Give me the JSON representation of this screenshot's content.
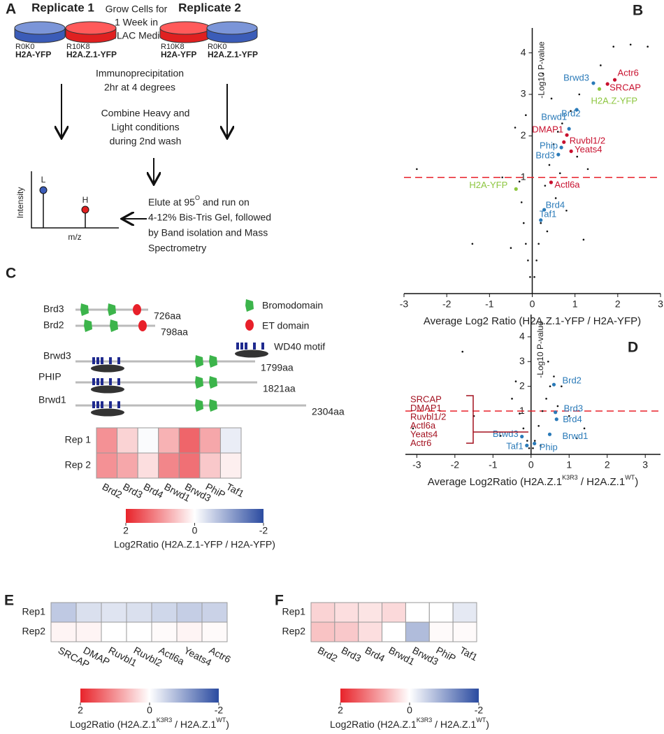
{
  "workflow": {
    "panel": "A",
    "replicate1": "Replicate 1",
    "replicate2": "Replicate 2",
    "grow": [
      "Grow Cells for",
      "1 Week in",
      "SILAC Media"
    ],
    "dishes": [
      {
        "label": "R0K0",
        "name": "H2A-YFP"
      },
      {
        "label": "R10K8",
        "name": "H2A.Z.1-YFP"
      },
      {
        "label": "R10K8",
        "name": "H2A-YFP"
      },
      {
        "label": "R0K0",
        "name": "H2A.Z.1-YFP"
      }
    ],
    "ip": [
      "Immunoprecipitation",
      "2hr at 4 degrees"
    ],
    "combine": [
      "Combine Heavy and",
      "Light conditions",
      "during 2nd wash"
    ],
    "elute_first": [
      "Elute at 95",
      "O",
      " and run on"
    ],
    "elute": [
      "4-12% Bis-Tris Gel, followed",
      "by Band isolation and Mass",
      "Spectrometry"
    ],
    "spectrum": {
      "light": "L",
      "heavy": "H",
      "y_label": "Intensity",
      "x_label": "m/z"
    }
  },
  "domains": {
    "panel": "C",
    "proteins": [
      {
        "name": "Brd3",
        "size": "726aa"
      },
      {
        "name": "Brd2",
        "size": "798aa"
      },
      {
        "name": "Brwd3",
        "size": "1799aa"
      },
      {
        "name": "PHIP",
        "size": "1821aa"
      },
      {
        "name": "Brwd1",
        "size": "2304aa"
      }
    ],
    "legend": [
      "Bromodomain",
      "ET domain",
      "WD40 motif"
    ]
  },
  "chart_data": [
    {
      "type": "scatter",
      "panel": "B",
      "x_label": "Average Log2 Ratio (H2A.Z.1-YFP / H2A-YFP)",
      "y_label": "-Log10 P-value",
      "xlim": [
        -3,
        3
      ],
      "xticks": [
        -3,
        -2,
        -1,
        0,
        1,
        2,
        3
      ],
      "ylim": [
        -1.8,
        4.6
      ],
      "yticks": [
        1,
        2,
        3,
        4
      ],
      "threshold": 1,
      "threshold_color": "#e8202a",
      "background": {
        "color": "#111111",
        "x": [
          -0.3,
          -0.25,
          -0.2,
          -0.15,
          -0.1,
          -0.05,
          0.05,
          0.1,
          0.15,
          0.2,
          0.3,
          0.4,
          0.5,
          0.6,
          0.7,
          0.9,
          1.1,
          1.3,
          1.6,
          1.9,
          2.3,
          2.7,
          -0.5,
          -0.7,
          -1.4,
          -2.7,
          0.35,
          0.55,
          0.8,
          1.05,
          -0.4,
          -0.15,
          0.25,
          0.45,
          1.2,
          0.65
        ],
        "y": [
          0.9,
          0.4,
          -0.1,
          -0.6,
          -1.0,
          -1.4,
          -1.4,
          -1.0,
          -0.6,
          -0.1,
          0.8,
          1.3,
          1.8,
          2.1,
          2.3,
          2.6,
          3.0,
          1.2,
          3.7,
          4.15,
          4.2,
          4.15,
          -0.7,
          1.0,
          -0.6,
          1.2,
          -0.3,
          0.5,
          0.2,
          1.5,
          2.2,
          2.5,
          3.5,
          2.9,
          -0.5,
          1.1
        ]
      },
      "points": [
        {
          "label": "Actr6",
          "x": 1.93,
          "y": 3.35,
          "color": "#c8102e"
        },
        {
          "label": "SRCAP",
          "x": 1.76,
          "y": 3.25,
          "color": "#c8102e"
        },
        {
          "label": "Brwd3",
          "x": 1.43,
          "y": 3.27,
          "color": "#2a7ab8"
        },
        {
          "label": "H2A.Z-YFP",
          "x": 1.57,
          "y": 3.13,
          "color": "#8dc63f"
        },
        {
          "label": "Brd2",
          "x": 1.04,
          "y": 2.63,
          "color": "#2a7ab8"
        },
        {
          "label": "Brwd1",
          "x": 0.86,
          "y": 2.17,
          "color": "#2a7ab8"
        },
        {
          "label": "DMAP1",
          "x": 0.81,
          "y": 2.02,
          "color": "#c8102e"
        },
        {
          "label": "Ruvbl1/2",
          "x": 0.74,
          "y": 1.85,
          "color": "#c8102e"
        },
        {
          "label": "Phip",
          "x": 0.68,
          "y": 1.72,
          "color": "#2a7ab8"
        },
        {
          "label": "Yeats4",
          "x": 0.91,
          "y": 1.63,
          "color": "#c8102e"
        },
        {
          "label": "Brd3",
          "x": 0.61,
          "y": 1.55,
          "color": "#2a7ab8"
        },
        {
          "label": "Actl6a",
          "x": 0.44,
          "y": 0.88,
          "color": "#c8102e"
        },
        {
          "label": "H2A-YFP",
          "x": -0.38,
          "y": 0.72,
          "color": "#8dc63f"
        },
        {
          "label": "Brd4",
          "x": 0.28,
          "y": 0.22,
          "color": "#2a7ab8"
        },
        {
          "label": "Taf1",
          "x": 0.2,
          "y": -0.03,
          "color": "#2a7ab8"
        }
      ]
    },
    {
      "type": "scatter",
      "panel": "D",
      "x_label": [
        "Average Log2Ratio (H2A.Z.1",
        "K3R3",
        " / H2A.Z.1",
        "WT",
        ")"
      ],
      "y_label": "-Log10 P-value",
      "xlim": [
        -3.3,
        3.4
      ],
      "xticks": [
        -3,
        -2,
        -1,
        0,
        1,
        2,
        3
      ],
      "ylim": [
        -0.75,
        4.9
      ],
      "yticks": [
        1,
        2,
        3,
        4
      ],
      "threshold": 1,
      "threshold_color": "#e8202a",
      "background": {
        "color": "#111111",
        "x": [
          -0.3,
          -0.2,
          -0.1,
          -0.05,
          0.05,
          0.1,
          0.2,
          0.3,
          0.4,
          0.5,
          0.6,
          0.8,
          1.0,
          1.4,
          -0.5,
          -0.8,
          -1.5,
          -3.1,
          -1.8,
          0.45,
          0.7,
          -0.4,
          0.25,
          1.2
        ],
        "y": [
          0.9,
          0.3,
          -0.2,
          -0.5,
          -0.5,
          -0.2,
          0.4,
          1.0,
          1.5,
          2.0,
          2.4,
          2.0,
          0.8,
          0.3,
          1.5,
          0.0,
          0.8,
          0.3,
          3.4,
          3.0,
          1.2,
          2.2,
          -0.4,
          -0.1
        ]
      },
      "points": [
        {
          "label": "Brd2",
          "x": 0.6,
          "y": 2.07,
          "color": "#2a7ab8"
        },
        {
          "label": "Brd3",
          "x": 0.64,
          "y": 0.95,
          "color": "#2a7ab8"
        },
        {
          "label": "Brd4",
          "x": 0.67,
          "y": 0.67,
          "color": "#2a7ab8"
        },
        {
          "label": "Brwd1",
          "x": 0.49,
          "y": 0.06,
          "color": "#2a7ab8"
        },
        {
          "label": "Brwd3",
          "x": -0.24,
          "y": -0.03,
          "color": "#2a7ab8"
        },
        {
          "label": "Taf1",
          "x": -0.11,
          "y": -0.39,
          "color": "#2a7ab8"
        },
        {
          "label": "Phip",
          "x": 0.09,
          "y": -0.31,
          "color": "#2a7ab8"
        }
      ],
      "group_labels": [
        "SRCAP",
        "DMAP1",
        "Ruvbl1/2",
        "Actl6a",
        "Yeats4",
        "Actr6"
      ],
      "group_color": "#a3101f"
    },
    {
      "type": "heatmap",
      "rows": [
        "Rep 1",
        "Rep 2"
      ],
      "columns": [
        "Brd2",
        "Brd3",
        "Brd4",
        "Brwd1",
        "Brwd3",
        "PhiP",
        "Taf1"
      ],
      "values": [
        [
          1.0,
          0.4,
          -0.05,
          0.7,
          1.4,
          0.8,
          -0.2
        ],
        [
          1.0,
          0.8,
          0.3,
          1.1,
          1.3,
          0.5,
          0.15
        ]
      ],
      "colorbar": {
        "lim": [
          2,
          -2
        ],
        "ticks": [
          2,
          0,
          -2
        ],
        "colors": [
          "#e8232a",
          "#ffffff",
          "#2b4ba0"
        ],
        "label": "Log2Ratio (H2A.Z.1-YFP / H2A-YFP)"
      }
    },
    {
      "type": "heatmap",
      "panel": "E",
      "rows": [
        "Rep1",
        "Rep2"
      ],
      "columns": [
        "SRCAP",
        "DMAP",
        "Ruvbl1",
        "Ruvbl2",
        "Actl6a",
        "Yeats4",
        "Actr6"
      ],
      "values": [
        [
          -0.6,
          -0.35,
          -0.3,
          -0.35,
          -0.45,
          -0.55,
          -0.5
        ],
        [
          0.1,
          0.1,
          0,
          0,
          0.05,
          0.1,
          0.05
        ]
      ],
      "colorbar": {
        "lim": [
          2,
          -2
        ],
        "ticks": [
          2,
          0,
          -2
        ],
        "colors": [
          "#e8232a",
          "#ffffff",
          "#2b4ba0"
        ],
        "label": [
          "Log2Ratio (H2A.Z.1",
          "K3R3",
          " / H2A.Z.1",
          "WT",
          ")"
        ]
      }
    },
    {
      "type": "heatmap",
      "panel": "F",
      "rows": [
        "Rep1",
        "Rep2"
      ],
      "columns": [
        "Brd2",
        "Brd3",
        "Brd4",
        "Brwd1",
        "Brwd3",
        "PhiP",
        "Taf1"
      ],
      "values": [
        [
          0.4,
          0.3,
          0.25,
          0.35,
          0,
          0,
          -0.25
        ],
        [
          0.55,
          0.5,
          0.3,
          0,
          -0.75,
          0.05,
          0.05
        ]
      ],
      "colorbar": {
        "lim": [
          2,
          -2
        ],
        "ticks": [
          2,
          0,
          -2
        ],
        "colors": [
          "#e8232a",
          "#ffffff",
          "#2b4ba0"
        ],
        "label": [
          "Log2Ratio (H2A.Z.1",
          "K3R3",
          " / H2A.Z.1",
          "WT",
          ")"
        ]
      }
    }
  ]
}
